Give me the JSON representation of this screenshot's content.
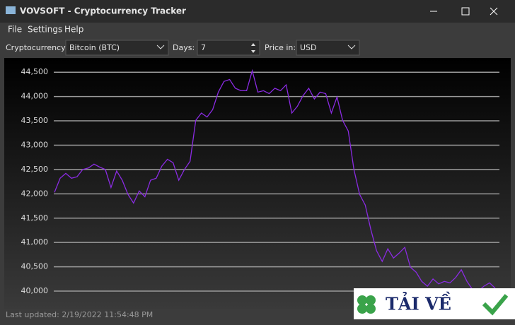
{
  "window": {
    "title": "VOVSOFT - Cryptocurrency Tracker"
  },
  "menu": [
    "File",
    "Settings",
    "Help"
  ],
  "toolbar": {
    "crypto_label": "Cryptocurrency:",
    "crypto_value": "Bitcoin (BTC)",
    "days_label": "Days:",
    "days_value": "7",
    "price_label": "Price in:",
    "price_value": "USD"
  },
  "chart_data": {
    "type": "line",
    "color": "#8a2be2",
    "values": [
      42030,
      42320,
      42420,
      42320,
      42350,
      42500,
      42530,
      42610,
      42550,
      42500,
      42130,
      42470,
      42280,
      41990,
      41810,
      42060,
      41940,
      42280,
      42320,
      42570,
      42710,
      42640,
      42280,
      42500,
      42670,
      43510,
      43660,
      43580,
      43730,
      44090,
      44310,
      44350,
      44170,
      44120,
      44120,
      44530,
      44090,
      44120,
      44060,
      44170,
      44120,
      44240,
      43660,
      43800,
      44020,
      44170,
      43950,
      44090,
      44060,
      43660,
      43990,
      43510,
      43290,
      42500,
      41990,
      41770,
      41260,
      40830,
      40610,
      40870,
      40680,
      40780,
      40900,
      40490,
      40390,
      40200,
      40100,
      40250,
      40150,
      40200,
      40170,
      40280,
      40440,
      40200,
      40030,
      40000,
      40100,
      40170,
      40060
    ],
    "ylim": [
      39710,
      44750
    ],
    "yticks": [
      {
        "value": 40000,
        "label": "40,000"
      },
      {
        "value": 40500,
        "label": "40,500"
      },
      {
        "value": 41000,
        "label": "41,000"
      },
      {
        "value": 41500,
        "label": "41,500"
      },
      {
        "value": 42000,
        "label": "42,000"
      },
      {
        "value": 42500,
        "label": "42,500"
      },
      {
        "value": 43000,
        "label": "43,000"
      },
      {
        "value": 43500,
        "label": "43,500"
      },
      {
        "value": 44000,
        "label": "44,000"
      },
      {
        "value": 44500,
        "label": "44,500"
      }
    ],
    "grid": true
  },
  "status": "Last updated: 2/19/2022 11:54:48 PM",
  "watermark": "TẢI VỀ"
}
